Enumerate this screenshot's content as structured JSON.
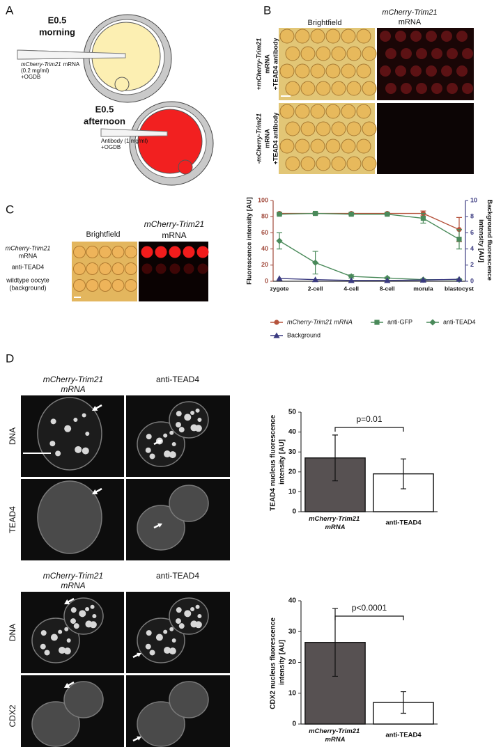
{
  "panels": {
    "a": {
      "label": "A",
      "morning": {
        "stage": "E0.5",
        "time": "morning",
        "injection": {
          "gene": "mCherry-Trim21",
          "rest": "mRNA"
        },
        "concentration": "(0.2 mg/ml)",
        "additive": "+OGDB"
      },
      "afternoon": {
        "stage": "E0.5",
        "time": "afternoon",
        "injection": "Antibody (1 mg/ml)",
        "additive": "+OGDB"
      }
    },
    "b": {
      "label": "B",
      "columns": [
        "Brightfield",
        {
          "gene": "mCherry-Trim21",
          "rest": "mRNA"
        }
      ],
      "rows": [
        [
          "+mCherry-Trim21",
          "mRNA",
          "+TEAD4 antibody"
        ],
        [
          "-mCherry-Trim21",
          "mRNA",
          "+TEAD4 antibody"
        ]
      ]
    },
    "c": {
      "label": "C",
      "columns": [
        "Brightfield",
        {
          "gene": "mCherry-Trim21",
          "rest": "mRNA"
        }
      ],
      "rows": [
        [
          "mCherry-Trim21",
          "mRNA"
        ],
        [
          "anti-TEAD4"
        ],
        [
          "wildtype oocyte",
          "(background)"
        ]
      ]
    },
    "d": {
      "label": "D",
      "top": {
        "columns": [
          [
            "mCherry-Trim21",
            "mRNA"
          ],
          [
            "anti-TEAD4"
          ]
        ],
        "rows": [
          "DNA",
          "TEAD4"
        ]
      },
      "bottom": {
        "columns": [
          [
            "mCherry-Trim21",
            "mRNA"
          ],
          [
            "anti-TEAD4"
          ]
        ],
        "rows": [
          "DNA",
          "CDX2"
        ]
      }
    }
  },
  "chart_data": [
    {
      "type": "line",
      "ylabel": "Fluorescence intensity [AU]",
      "y2label": "Background fluorescence intensity [AU]",
      "categories": [
        "zygote",
        "2-cell",
        "4-cell",
        "8-cell",
        "morula",
        "blastocyst"
      ],
      "ylim": [
        0,
        100
      ],
      "yticks": [
        0,
        20,
        40,
        60,
        80,
        100
      ],
      "y2lim": [
        0,
        10
      ],
      "y2ticks": [
        0,
        2,
        4,
        6,
        8,
        10
      ],
      "series": [
        {
          "name": "mCherry-Trim21 mRNA",
          "color": "#b5533c",
          "marker": "circle",
          "values": [
            84,
            84,
            84,
            84,
            84,
            64
          ],
          "errors": [
            1,
            1,
            1,
            1,
            3,
            15
          ]
        },
        {
          "name": "anti-GFP",
          "color": "#4a8a5a",
          "marker": "square",
          "values": [
            83,
            84,
            83,
            83,
            78,
            52
          ],
          "errors": [
            1,
            1,
            1,
            1,
            6,
            12
          ]
        },
        {
          "name": "anti-TEAD4",
          "color": "#4a8a5a",
          "marker": "diamond",
          "values": [
            50,
            23,
            6,
            4,
            2,
            2
          ],
          "errors": [
            10,
            14,
            2,
            1,
            1,
            1
          ]
        },
        {
          "name": "Background",
          "color": "#3a3a80",
          "marker": "triangle",
          "axis": "y2",
          "values": [
            0.35,
            0.2,
            0.1,
            0.1,
            0.15,
            0.25
          ]
        }
      ]
    },
    {
      "type": "bar",
      "ylabel": "TEAD4 nucleus fluorescence intensity [AU]",
      "categories": [
        "mCherry-Trim21 mRNA",
        "anti-TEAD4"
      ],
      "values": [
        27,
        19
      ],
      "errors": [
        11.5,
        7.5
      ],
      "colors": [
        "#575152",
        "#ffffff"
      ],
      "ylim": [
        0,
        50
      ],
      "yticks": [
        0,
        10,
        20,
        30,
        40,
        50
      ],
      "annotation": "p=0.01"
    },
    {
      "type": "bar",
      "ylabel": "CDX2 nucleus fluorescence intensity [AU]",
      "categories": [
        "mCherry-Trim21 mRNA",
        "anti-TEAD4"
      ],
      "values": [
        26.5,
        7
      ],
      "errors": [
        11,
        3.5
      ],
      "colors": [
        "#575152",
        "#ffffff"
      ],
      "ylim": [
        0,
        40
      ],
      "yticks": [
        0,
        10,
        20,
        30,
        40
      ],
      "annotation": "p<0.0001"
    }
  ]
}
